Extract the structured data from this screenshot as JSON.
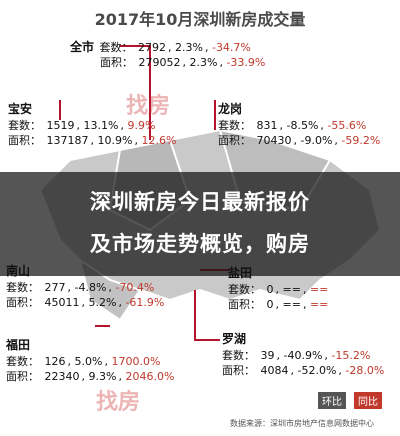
{
  "title": "2017年10月深圳新房成交量",
  "headline": {
    "line1": "深圳新房今日最新报价",
    "line2": "及市场走势概览，购房"
  },
  "districts": {
    "quanshi": {
      "name": "全市",
      "tao_label": "套数：",
      "tao": "2792",
      "tao_mom": "2.3%",
      "tao_yoy": "-34.7%",
      "area_label": "面积：",
      "area": "279052",
      "area_mom": "2.3%",
      "area_yoy": "-33.9%"
    },
    "baoan": {
      "name": "宝安",
      "tao_label": "套数：",
      "tao": "1519",
      "tao_mom": "13.1%",
      "tao_yoy": "9.9%",
      "area_label": "面积：",
      "area": "137187",
      "area_mom": "10.9%",
      "area_yoy": "12.6%"
    },
    "longgang": {
      "name": "龙岗",
      "tao_label": "套数：",
      "tao": "831",
      "tao_mom": "-8.5%",
      "tao_yoy": "-55.6%",
      "area_label": "面积：",
      "area": "70430",
      "area_mom": "-9.0%",
      "area_yoy": "-59.2%"
    },
    "nanshan": {
      "name": "南山",
      "tao_label": "套数：",
      "tao": "277",
      "tao_mom": "-4.8%",
      "tao_yoy": "-70.4%",
      "area_label": "面积：",
      "area": "45011",
      "area_mom": "5.2%",
      "area_yoy": "-61.9%"
    },
    "yantian": {
      "name": "盐田",
      "tao_label": "套数：",
      "tao": "0",
      "tao_mom": "==",
      "tao_yoy": "==",
      "area_label": "面积：",
      "area": "0",
      "area_mom": "==",
      "area_yoy": "=="
    },
    "futian": {
      "name": "福田",
      "tao_label": "套数：",
      "tao": "126",
      "tao_mom": "5.0%",
      "tao_yoy": "1700.0%",
      "area_label": "面积：",
      "area": "22340",
      "area_mom": "9.3%",
      "area_yoy": "2046.0%"
    },
    "luohu": {
      "name": "罗湖",
      "tao_label": "套数：",
      "tao": "39",
      "tao_mom": "-40.9%",
      "tao_yoy": "-15.2%",
      "area_label": "面积：",
      "area": "4084",
      "area_mom": "-52.0%",
      "area_yoy": "-28.0%"
    }
  },
  "watermark": "找房",
  "footer": "数据来源：深圳市房地产信息网数据中心",
  "badges": {
    "b1": "环比",
    "b2": "同比"
  },
  "colors": {
    "map_fill": "#c9c9c9",
    "map_edge": "#ffffff",
    "accent_red": "#c0392b",
    "leader": "#b5132b"
  }
}
